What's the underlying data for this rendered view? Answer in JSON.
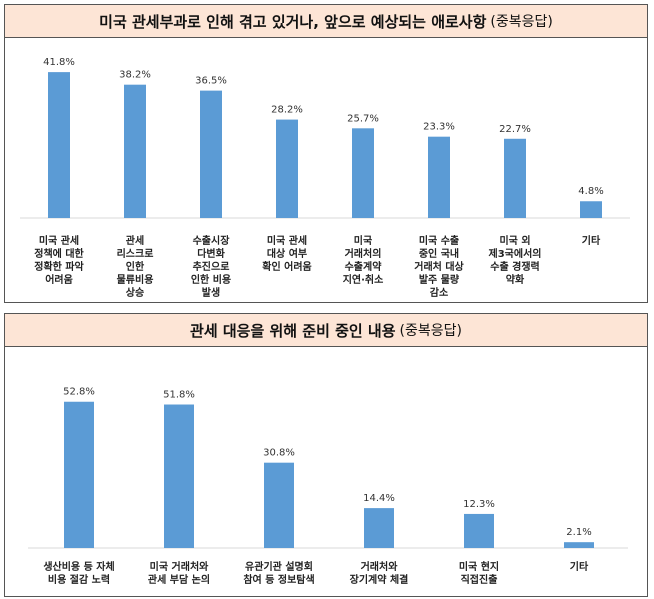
{
  "chart_data": [
    {
      "type": "bar",
      "title": "미국 관세부과로 인해 겪고 있거나, 앞으로 예상되는 애로사항",
      "subtitle": "(중복응답)",
      "categories": [
        [
          "미국 관세",
          "정책에 대한",
          "정확한 파악",
          "어려움"
        ],
        [
          "관세",
          "리스크로",
          "인한",
          "물류비용",
          "상승"
        ],
        [
          "수출시장",
          "다변화",
          "추진으로",
          "인한 비용",
          "발생"
        ],
        [
          "미국 관세",
          "대상 여부",
          "확인 어려움"
        ],
        [
          "미국",
          "거래처의",
          "수출계약",
          "지연·취소"
        ],
        [
          "미국 수출",
          "중인 국내",
          "거래처 대상",
          "발주 물량",
          "감소"
        ],
        [
          "미국 외",
          "제3국에서의",
          "수출 경쟁력",
          "약화"
        ],
        [
          "기타"
        ]
      ],
      "values": [
        41.8,
        38.2,
        36.5,
        28.2,
        25.7,
        23.3,
        22.7,
        4.8
      ],
      "labels": [
        "41.8%",
        "38.2%",
        "36.5%",
        "28.2%",
        "25.7%",
        "23.3%",
        "22.7%",
        "4.8%"
      ],
      "unit": "%",
      "bar_color": "#5b9bd5",
      "title_bg": "#fde5d6",
      "grid": false
    },
    {
      "type": "bar",
      "title": "관세 대응을 위해 준비 중인 내용",
      "subtitle": "(중복응답)",
      "categories": [
        [
          "생산비용 등 자체",
          "비용 절감 노력"
        ],
        [
          "미국 거래처와",
          "관세 부담 논의"
        ],
        [
          "유관기관 설명회",
          "참여 등 정보탐색"
        ],
        [
          "거래처와",
          "장기계약 체결"
        ],
        [
          "미국 현지",
          "직접진출"
        ],
        [
          "기타"
        ]
      ],
      "values": [
        52.8,
        51.8,
        30.8,
        14.4,
        12.3,
        2.1
      ],
      "labels": [
        "52.8%",
        "51.8%",
        "30.8%",
        "14.4%",
        "12.3%",
        "2.1%"
      ],
      "unit": "%",
      "bar_color": "#5b9bd5",
      "title_bg": "#fde5d6",
      "grid": false
    }
  ]
}
